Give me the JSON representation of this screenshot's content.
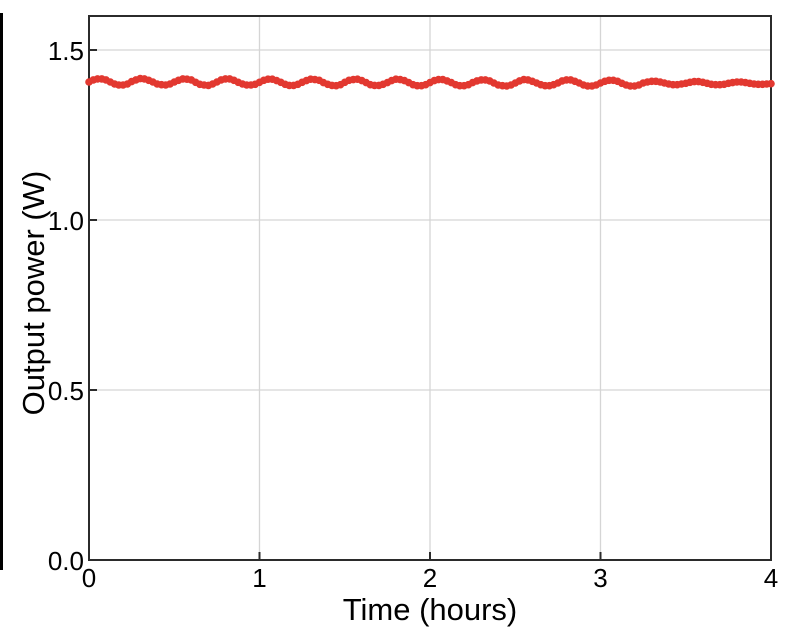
{
  "figure": {
    "background_color": "#ffffff",
    "left_border_color": "#000000"
  },
  "chart_data": {
    "type": "scatter",
    "title": "",
    "xlabel": "Time (hours)",
    "ylabel": "Output power (W)",
    "xlim": [
      0,
      4
    ],
    "ylim": [
      0,
      1.6
    ],
    "x_ticks": [
      0,
      1,
      2,
      3,
      4
    ],
    "x_tick_labels": [
      "0",
      "1",
      "2",
      "3",
      "4"
    ],
    "y_ticks": [
      0.0,
      0.5,
      1.0,
      1.5
    ],
    "y_tick_labels": [
      "0.0",
      "0.5",
      "1.0",
      "1.5"
    ],
    "x_gridlines": [
      1,
      2,
      3
    ],
    "y_gridlines": [
      0.5,
      1.0,
      1.5
    ],
    "grid": true,
    "legend": false,
    "colors": {
      "marker": "#e23830",
      "grid": "#d5d5d5",
      "spine": "#2b2b2b",
      "text": "#000000"
    },
    "series": [
      {
        "name": "output-power",
        "marker": "circle",
        "color": "#e23830",
        "x_start": 0,
        "x_step": 0.025,
        "y": [
          1.406,
          1.412,
          1.415,
          1.415,
          1.412,
          1.406,
          1.4,
          1.397,
          1.397,
          1.4,
          1.407,
          1.412,
          1.416,
          1.415,
          1.411,
          1.406,
          1.4,
          1.398,
          1.397,
          1.4,
          1.406,
          1.411,
          1.415,
          1.414,
          1.412,
          1.405,
          1.399,
          1.397,
          1.396,
          1.4,
          1.406,
          1.412,
          1.415,
          1.415,
          1.411,
          1.405,
          1.4,
          1.397,
          1.397,
          1.399,
          1.405,
          1.411,
          1.414,
          1.414,
          1.41,
          1.405,
          1.399,
          1.396,
          1.396,
          1.399,
          1.405,
          1.41,
          1.414,
          1.413,
          1.411,
          1.404,
          1.399,
          1.396,
          1.395,
          1.398,
          1.405,
          1.411,
          1.413,
          1.414,
          1.41,
          1.404,
          1.398,
          1.396,
          1.396,
          1.399,
          1.404,
          1.41,
          1.414,
          1.413,
          1.41,
          1.404,
          1.398,
          1.395,
          1.395,
          1.398,
          1.404,
          1.41,
          1.413,
          1.413,
          1.409,
          1.404,
          1.398,
          1.395,
          1.395,
          1.398,
          1.404,
          1.409,
          1.412,
          1.412,
          1.409,
          1.403,
          1.397,
          1.395,
          1.394,
          1.397,
          1.403,
          1.409,
          1.413,
          1.412,
          1.408,
          1.403,
          1.398,
          1.395,
          1.395,
          1.398,
          1.403,
          1.409,
          1.412,
          1.412,
          1.408,
          1.403,
          1.397,
          1.394,
          1.394,
          1.397,
          1.403,
          1.408,
          1.411,
          1.411,
          1.408,
          1.402,
          1.397,
          1.394,
          1.394,
          1.397,
          1.403,
          1.406,
          1.408,
          1.408,
          1.406,
          1.403,
          1.4,
          1.398,
          1.398,
          1.4,
          1.402,
          1.405,
          1.407,
          1.407,
          1.405,
          1.402,
          1.399,
          1.398,
          1.398,
          1.399,
          1.402,
          1.404,
          1.406,
          1.406,
          1.404,
          1.402,
          1.4,
          1.399,
          1.399,
          1.4,
          1.401
        ]
      }
    ]
  }
}
